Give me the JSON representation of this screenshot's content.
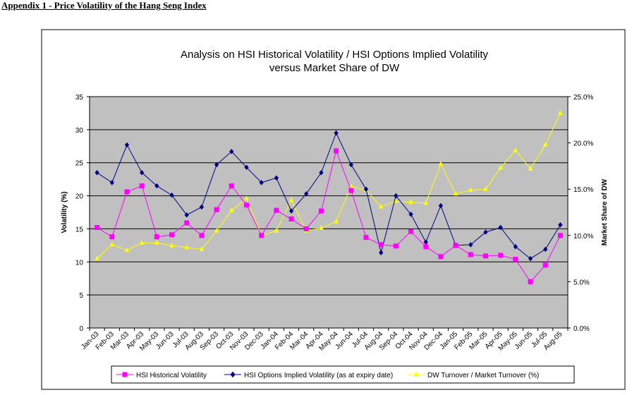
{
  "page": {
    "heading": "Appendix 1 - Price Volatility of the Hang Seng Index"
  },
  "chart_data": {
    "type": "line",
    "title_line1": "Analysis on HSI Historical Volatility / HSI Options Implied Volatility",
    "title_line2": "versus Market Share of DW",
    "ylabel": "Volatility (%)",
    "y2label": "Market Share of DW",
    "ylim": [
      0,
      35
    ],
    "yticks": [
      0,
      5,
      10,
      15,
      20,
      25,
      30,
      35
    ],
    "y2lim": [
      0,
      25
    ],
    "y2ticks": [
      "0.0%",
      "5.0%",
      "10.0%",
      "15.0%",
      "20.0%",
      "25.0%"
    ],
    "grid": "horizontal",
    "plot_background": "#c0c0c0",
    "legend_position": "bottom",
    "categories": [
      "Jan-03",
      "Feb-03",
      "Mar-03",
      "Apr-03",
      "May-03",
      "Jun-03",
      "Jul-03",
      "Aug-03",
      "Sep-03",
      "Oct-03",
      "Nov-03",
      "Dec-03",
      "Jan-04",
      "Feb-04",
      "Mar-04",
      "Apr-04",
      "May-04",
      "Jun-04",
      "Jul-04",
      "Aug-04",
      "Sep-04",
      "Oct-04",
      "Nov-04",
      "Dec-04",
      "Jan-05",
      "Feb-05",
      "Mar-05",
      "Apr-05",
      "May-05",
      "Jun-05",
      "Jul-05",
      "Aug-05"
    ],
    "series": [
      {
        "name": "HSI Historical Volatility",
        "axis": "left",
        "color": "#ff00ff",
        "marker": "square",
        "values": [
          15.2,
          13.8,
          20.6,
          21.5,
          13.8,
          14.1,
          15.9,
          14.0,
          17.9,
          21.5,
          18.6,
          14.0,
          17.8,
          16.5,
          15.0,
          17.7,
          26.8,
          20.8,
          13.7,
          12.6,
          12.4,
          14.6,
          12.3,
          10.8,
          12.5,
          11.1,
          10.9,
          11.0,
          10.4,
          7.0,
          9.5,
          14.0
        ]
      },
      {
        "name": "HSI Options Implied Volatility (as at expiry date)",
        "axis": "left",
        "color": "#000080",
        "marker": "diamond",
        "values": [
          23.5,
          22.0,
          27.7,
          23.5,
          21.5,
          20.1,
          17.1,
          18.3,
          24.7,
          26.7,
          24.3,
          22.0,
          22.7,
          17.7,
          20.3,
          23.5,
          29.5,
          24.7,
          21.0,
          11.4,
          20.0,
          17.2,
          13.0,
          18.5,
          12.5,
          12.6,
          14.5,
          15.2,
          12.3,
          10.5,
          11.9,
          15.6
        ]
      },
      {
        "name": "DW Turnover / Market Turnover (%)",
        "axis": "right",
        "color": "#ffff00",
        "marker": "triangle",
        "values": [
          7.5,
          9.0,
          8.4,
          9.2,
          9.2,
          8.9,
          8.7,
          8.5,
          10.5,
          12.7,
          14.0,
          10.0,
          10.5,
          13.8,
          10.5,
          10.8,
          11.5,
          15.3,
          14.9,
          13.1,
          13.7,
          13.6,
          13.5,
          17.7,
          14.5,
          14.9,
          15.0,
          17.3,
          19.2,
          17.2,
          19.8,
          23.2
        ]
      }
    ]
  }
}
